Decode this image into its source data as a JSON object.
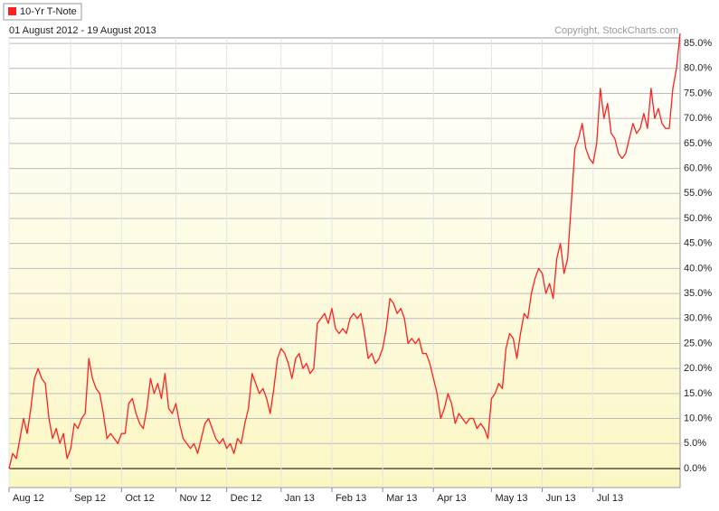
{
  "chart_data": {
    "type": "line",
    "legend_label": "10-Yr T-Note",
    "subtitle": "01 August 2012 - 19 August 2013",
    "copyright": "Copyright, StockCharts.com",
    "grid": true,
    "categories": [
      "Aug 12",
      null,
      null,
      null,
      null,
      null,
      null,
      null,
      null,
      null,
      null,
      null,
      null,
      null,
      null,
      null,
      null,
      "Sep 12",
      null,
      null,
      null,
      null,
      null,
      null,
      null,
      null,
      null,
      null,
      null,
      null,
      null,
      "Oct 12",
      null,
      null,
      null,
      null,
      null,
      null,
      null,
      null,
      null,
      null,
      null,
      null,
      null,
      null,
      "Nov 12",
      null,
      null,
      null,
      null,
      null,
      null,
      null,
      null,
      null,
      null,
      null,
      null,
      null,
      "Dec 12",
      null,
      null,
      null,
      null,
      null,
      null,
      null,
      null,
      null,
      null,
      null,
      null,
      null,
      null,
      "Jan 13",
      null,
      null,
      null,
      null,
      null,
      null,
      null,
      null,
      null,
      null,
      null,
      null,
      null,
      "Feb 13",
      null,
      null,
      null,
      null,
      null,
      null,
      null,
      null,
      null,
      null,
      null,
      null,
      null,
      "Mar 13",
      null,
      null,
      null,
      null,
      null,
      null,
      null,
      null,
      null,
      null,
      null,
      null,
      null,
      "Apr 13",
      null,
      null,
      null,
      null,
      null,
      null,
      null,
      null,
      null,
      null,
      null,
      null,
      null,
      null,
      null,
      "May 13",
      null,
      null,
      null,
      null,
      null,
      null,
      null,
      null,
      null,
      null,
      null,
      null,
      null,
      "Jun 13",
      null,
      null,
      null,
      null,
      null,
      null,
      null,
      null,
      null,
      null,
      null,
      null,
      null,
      "Jul 13",
      null,
      null,
      null,
      null,
      null,
      null,
      null,
      null,
      null,
      null,
      null,
      null,
      null,
      null,
      null,
      null,
      null,
      null,
      null,
      null,
      null,
      null,
      null,
      null
    ],
    "series": [
      {
        "name": "10-Yr T-Note",
        "color": "#ff2020",
        "values": [
          0,
          3,
          2,
          6,
          10,
          7,
          12,
          18,
          20,
          18,
          17,
          10,
          6,
          8,
          5,
          7,
          2,
          4,
          9,
          8,
          10,
          11,
          22,
          18,
          16,
          15,
          11,
          6,
          7,
          6,
          5,
          7,
          7,
          13,
          14,
          11,
          9,
          8,
          12,
          18,
          15,
          17,
          14,
          19,
          12,
          11,
          13,
          9,
          6,
          5,
          4,
          5,
          3,
          6,
          9,
          10,
          8,
          6,
          5,
          6,
          4,
          5,
          3,
          6,
          5,
          9,
          12,
          19,
          17,
          15,
          16,
          14,
          11,
          16,
          22,
          24,
          23,
          21,
          18,
          22,
          23,
          20,
          21,
          19,
          20,
          29,
          30,
          31,
          29,
          32,
          28,
          27,
          28,
          27,
          30,
          31,
          30,
          31,
          27,
          22,
          23,
          21,
          22,
          24,
          28,
          34,
          33,
          31,
          32,
          30,
          25,
          26,
          25,
          26,
          23,
          23,
          21,
          18,
          15,
          10,
          12,
          15,
          13,
          9,
          11,
          10,
          9,
          10,
          10,
          8,
          9,
          8,
          6,
          14,
          15,
          17,
          16,
          24,
          27,
          26,
          22,
          27,
          31,
          30,
          35,
          38,
          40,
          39,
          35,
          37,
          34,
          42,
          45,
          39,
          42,
          53,
          64,
          66,
          69,
          64,
          62,
          61,
          65,
          76,
          70,
          73,
          67,
          66,
          63,
          62,
          63,
          66,
          69,
          67,
          68,
          71,
          68,
          76,
          70,
          72,
          69,
          68,
          68,
          76,
          80,
          87
        ]
      }
    ],
    "ylim": [
      -3.8,
      86.1
    ],
    "yticks": [
      {
        "value": 0,
        "label": "0.0%"
      },
      {
        "value": 5,
        "label": "5.0%"
      },
      {
        "value": 10,
        "label": "10.0%"
      },
      {
        "value": 15,
        "label": "15.0%"
      },
      {
        "value": 20,
        "label": "20.0%"
      },
      {
        "value": 25,
        "label": "25.0%"
      },
      {
        "value": 30,
        "label": "30.0%"
      },
      {
        "value": 35,
        "label": "35.0%"
      },
      {
        "value": 40,
        "label": "40.0%"
      },
      {
        "value": 45,
        "label": "45.0%"
      },
      {
        "value": 50,
        "label": "50.0%"
      },
      {
        "value": 55,
        "label": "55.0%"
      },
      {
        "value": 60,
        "label": "60.0%"
      },
      {
        "value": 65,
        "label": "65.0%"
      },
      {
        "value": 70,
        "label": "70.0%"
      },
      {
        "value": 75,
        "label": "75.0%"
      },
      {
        "value": 80,
        "label": "80.0%"
      },
      {
        "value": 85,
        "label": "85.0%"
      }
    ]
  }
}
